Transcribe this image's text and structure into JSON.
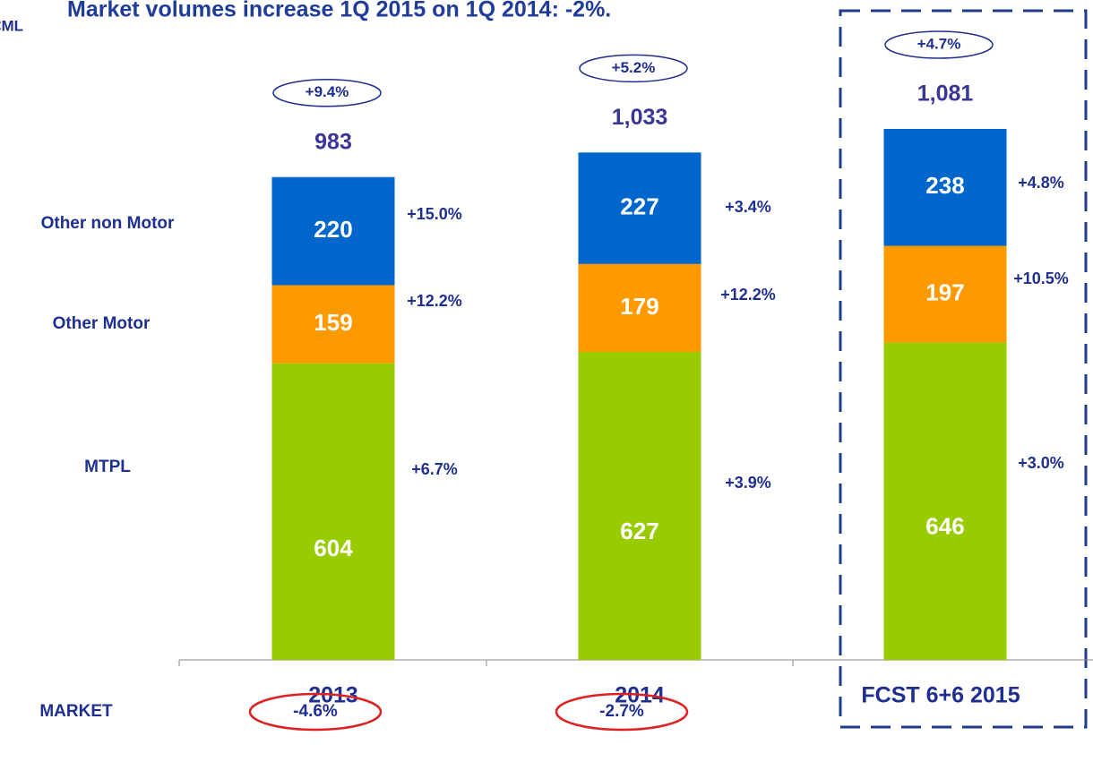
{
  "chart_data": {
    "type": "stacked_bar",
    "title": "Market volumes increase 1Q 2015 on 1Q 2014: -2%.",
    "unit_label": "€ML",
    "categories": [
      "2013",
      "2014",
      "FCST 6+6 2015"
    ],
    "series": [
      {
        "name": "MTPL",
        "color": "#99cc00",
        "values": [
          604,
          627,
          646
        ],
        "growth": [
          "+6.7%",
          "+3.9%",
          "+3.0%"
        ]
      },
      {
        "name": "Other Motor",
        "color": "#ff9900",
        "values": [
          159,
          179,
          197
        ],
        "growth": [
          "+12.2%",
          "+12.2%",
          "+10.5%"
        ]
      },
      {
        "name": "Other non Motor",
        "color": "#0066cc",
        "values": [
          220,
          227,
          238
        ],
        "growth": [
          "+15.0%",
          "+3.4%",
          "+4.8%"
        ]
      }
    ],
    "totals": [
      983,
      1033,
      1081
    ],
    "totals_labels": [
      "983",
      "1,033",
      "1,081"
    ],
    "total_growth": [
      "+9.4%",
      "+5.2%",
      "+4.7%"
    ],
    "market_label": "MARKET",
    "market_growth": [
      "-4.6%",
      "-2.7%",
      null
    ]
  }
}
